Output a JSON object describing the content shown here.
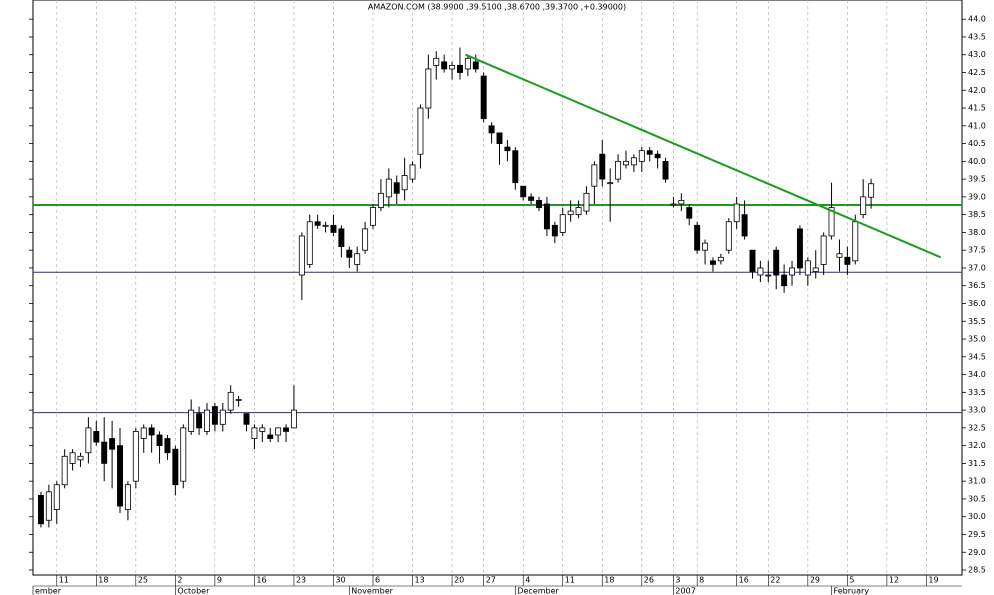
{
  "chart_data": {
    "type": "candlestick",
    "title": "AMAZON.COM (38.9900 ,39.5100 ,38.6700 ,39.3700 ,+0.39000)",
    "categories": [
      null,
      null,
      "11",
      null,
      null,
      null,
      null,
      "18",
      null,
      null,
      null,
      null,
      "25",
      null,
      null,
      null,
      null,
      "2",
      null,
      null,
      null,
      null,
      "9",
      null,
      null,
      null,
      null,
      "16",
      null,
      null,
      null,
      null,
      "23",
      null,
      null,
      null,
      null,
      "30",
      null,
      null,
      null,
      null,
      "6",
      null,
      null,
      null,
      null,
      "13",
      null,
      null,
      null,
      null,
      "20",
      null,
      null,
      null,
      "27",
      null,
      null,
      null,
      null,
      "4",
      null,
      null,
      null,
      null,
      "11",
      null,
      null,
      null,
      null,
      "18",
      null,
      null,
      null,
      null,
      "26",
      null,
      null,
      null,
      "3",
      null,
      null,
      "8",
      null,
      null,
      null,
      null,
      "16",
      null,
      null,
      null,
      "22",
      null,
      null,
      null,
      null,
      "29",
      null,
      null,
      null,
      null,
      "5",
      null,
      null,
      null,
      null,
      "12",
      null,
      null,
      null,
      null,
      "19",
      null,
      null,
      null,
      null
    ],
    "months": [
      "ember",
      null,
      null,
      null,
      null,
      null,
      null,
      null,
      null,
      null,
      null,
      null,
      null,
      null,
      null,
      null,
      null,
      "October",
      null,
      null,
      null,
      null,
      null,
      null,
      null,
      null,
      null,
      null,
      null,
      null,
      null,
      null,
      null,
      null,
      null,
      null,
      null,
      null,
      null,
      "November",
      null,
      null,
      null,
      null,
      null,
      null,
      null,
      null,
      null,
      null,
      null,
      null,
      null,
      null,
      null,
      null,
      null,
      null,
      null,
      null,
      "December",
      null,
      null,
      null,
      null,
      null,
      null,
      null,
      null,
      null,
      null,
      null,
      null,
      null,
      null,
      null,
      null,
      null,
      null,
      null,
      "2007",
      null,
      null,
      null,
      null,
      null,
      null,
      null,
      null,
      null,
      null,
      null,
      null,
      null,
      null,
      null,
      null,
      null,
      null,
      null,
      "February",
      null,
      null,
      null,
      null,
      null,
      null,
      null,
      null,
      null,
      null,
      null,
      null,
      null,
      null,
      null,
      null
    ],
    "open": [
      30.6,
      29.9,
      30.2,
      30.9,
      31.5,
      31.6,
      31.8,
      32.4,
      32.1,
      32.2,
      32.0,
      30.2,
      31.0,
      32.2,
      32.5,
      32.3,
      32.2,
      31.9,
      31.0,
      32.4,
      32.9,
      32.4,
      33.1,
      32.6,
      33.0,
      33.3,
      32.9,
      32.2,
      32.4,
      32.3,
      32.3,
      32.5,
      32.5,
      36.8,
      37.1,
      38.3,
      38.2,
      38.2,
      38.1,
      37.5,
      37.1,
      37.5,
      38.2,
      38.7,
      39.0,
      39.4,
      39.2,
      39.5,
      40.2,
      41.5,
      42.7,
      42.8,
      42.6,
      42.7,
      42.6,
      42.8,
      42.4,
      41.0,
      40.8,
      40.4,
      40.3,
      39.3,
      39.0,
      38.9,
      38.8,
      38.2,
      38.0,
      38.5,
      38.5,
      38.6,
      39.3,
      40.2,
      39.4,
      39.5,
      39.9,
      39.9,
      40.0,
      40.3,
      40.2,
      40.0,
      38.8,
      38.8,
      38.7,
      38.2,
      37.5,
      37.2,
      37.2,
      37.5,
      38.3,
      38.5,
      37.5,
      36.8,
      36.8,
      37.5,
      36.8,
      36.8,
      38.1,
      36.8,
      36.9,
      37.1,
      37.9,
      37.3,
      37.3,
      37.2,
      38.5,
      38.99,
      null,
      null,
      null,
      null,
      null,
      null,
      null,
      null,
      null,
      null,
      null
    ],
    "high": [
      30.7,
      30.9,
      31.0,
      31.9,
      31.9,
      31.8,
      32.8,
      32.7,
      32.8,
      32.7,
      32.5,
      31.0,
      32.5,
      32.6,
      32.6,
      32.4,
      32.3,
      32.0,
      32.6,
      33.3,
      33.1,
      33.2,
      33.2,
      33.2,
      33.7,
      33.4,
      32.9,
      32.6,
      32.6,
      32.5,
      32.5,
      32.6,
      33.7,
      38.0,
      38.5,
      38.5,
      38.3,
      38.5,
      38.2,
      37.6,
      37.6,
      38.3,
      38.8,
      39.5,
      39.8,
      39.6,
      40.1,
      40.0,
      41.6,
      43.0,
      43.1,
      43.0,
      42.8,
      43.2,
      43.0,
      43.0,
      42.5,
      41.1,
      40.8,
      40.6,
      40.4,
      39.3,
      39.1,
      39.0,
      39.0,
      38.3,
      38.7,
      38.9,
      38.9,
      39.3,
      40.0,
      40.6,
      39.8,
      40.2,
      40.3,
      40.2,
      40.4,
      40.4,
      40.3,
      40.1,
      39.0,
      39.1,
      38.8,
      38.3,
      37.8,
      37.3,
      37.4,
      38.4,
      39.0,
      38.9,
      37.5,
      37.2,
      37.2,
      37.6,
      37.1,
      37.2,
      38.2,
      37.3,
      37.5,
      38.0,
      39.4,
      37.8,
      37.6,
      38.5,
      39.5,
      39.51,
      null,
      null,
      null,
      null,
      null,
      null,
      null,
      null,
      null,
      null,
      null
    ],
    "low": [
      29.7,
      29.7,
      29.8,
      30.8,
      31.3,
      31.4,
      31.5,
      32.0,
      31.0,
      30.8,
      30.1,
      29.9,
      30.8,
      31.8,
      31.8,
      31.5,
      31.6,
      30.6,
      30.8,
      32.3,
      32.3,
      32.3,
      32.4,
      32.4,
      32.9,
      33.1,
      32.4,
      31.9,
      32.1,
      32.1,
      32.1,
      32.1,
      32.5,
      36.1,
      37.0,
      38.1,
      38.0,
      37.9,
      37.3,
      37.0,
      36.9,
      37.4,
      38.1,
      38.6,
      38.7,
      38.8,
      38.9,
      39.4,
      39.8,
      41.2,
      42.3,
      42.5,
      42.3,
      42.3,
      42.4,
      42.5,
      41.1,
      40.5,
      39.9,
      40.0,
      39.2,
      38.9,
      38.8,
      38.6,
      37.9,
      37.7,
      37.9,
      38.3,
      38.4,
      38.5,
      38.8,
      39.3,
      38.3,
      39.4,
      39.8,
      39.7,
      39.7,
      40.0,
      39.8,
      39.4,
      38.7,
      38.6,
      38.2,
      37.4,
      37.1,
      36.9,
      37.1,
      37.4,
      38.1,
      37.8,
      36.7,
      36.6,
      36.6,
      36.4,
      36.3,
      36.5,
      36.8,
      36.5,
      36.7,
      36.8,
      37.8,
      36.9,
      36.8,
      37.1,
      38.4,
      38.67,
      null,
      null,
      null,
      null,
      null,
      null,
      null,
      null,
      null,
      null,
      null
    ],
    "close": [
      29.8,
      30.7,
      30.9,
      31.7,
      31.8,
      31.7,
      32.5,
      32.1,
      31.5,
      31.9,
      30.3,
      30.9,
      32.4,
      32.5,
      32.3,
      32.0,
      31.8,
      30.9,
      32.5,
      33.0,
      32.5,
      33.0,
      32.6,
      33.0,
      33.5,
      33.3,
      32.6,
      32.5,
      32.5,
      32.2,
      32.5,
      32.4,
      33.0,
      37.9,
      38.3,
      38.2,
      38.2,
      38.0,
      37.6,
      37.3,
      37.4,
      38.1,
      38.7,
      39.1,
      39.5,
      39.1,
      39.6,
      39.9,
      41.5,
      42.6,
      42.9,
      42.6,
      42.7,
      42.5,
      42.9,
      42.6,
      41.2,
      40.8,
      40.5,
      40.3,
      39.4,
      39.0,
      38.9,
      38.7,
      38.1,
      37.9,
      38.5,
      38.6,
      38.7,
      39.1,
      39.9,
      39.5,
      39.4,
      40.0,
      40.0,
      40.1,
      40.3,
      40.2,
      40.1,
      39.5,
      38.8,
      38.9,
      38.4,
      37.5,
      37.7,
      37.1,
      37.3,
      38.3,
      38.8,
      37.9,
      36.9,
      37.0,
      36.8,
      36.8,
      36.5,
      37.0,
      37.0,
      37.2,
      37.0,
      37.9,
      38.7,
      37.4,
      37.1,
      38.3,
      39.0,
      39.37,
      null,
      null,
      null,
      null,
      null,
      null,
      null,
      null,
      null,
      null,
      null
    ],
    "up_color": "#ffffff",
    "down_color": "#000000",
    "ylim": [
      28.36,
      44.54
    ],
    "yticks": [
      28.5,
      {
        "value": 29,
        "label": "29.0"
      },
      29.5,
      {
        "value": 30,
        "label": "30.0"
      },
      30.5,
      {
        "value": 31,
        "label": "31.0"
      },
      31.5,
      {
        "value": 32,
        "label": "32.0"
      },
      32.5,
      {
        "value": 33,
        "label": "33.0"
      },
      33.5,
      {
        "value": 34,
        "label": "34.0"
      },
      34.5,
      {
        "value": 35,
        "label": "35.0"
      },
      35.5,
      {
        "value": 36,
        "label": "36.0"
      },
      36.5,
      {
        "value": 37,
        "label": "37.0"
      },
      37.5,
      {
        "value": 38,
        "label": "38.0"
      },
      38.5,
      {
        "value": 39,
        "label": "39.0"
      },
      39.5,
      {
        "value": 40,
        "label": "40.0"
      },
      40.5,
      {
        "value": 41,
        "label": "41.0"
      },
      41.5,
      {
        "value": 42,
        "label": "42.0"
      },
      42.5,
      {
        "value": 43,
        "label": "43.0"
      },
      43.5,
      {
        "value": 44,
        "label": "44.0"
      }
    ],
    "hlines": [
      {
        "value": 38.77,
        "color": "#1e9a1e"
      },
      {
        "value": 36.88,
        "color": "#2a2a8c"
      },
      {
        "value": 32.93,
        "color": "#2a2a8c"
      }
    ],
    "trendline": {
      "color": "#1e9a1e",
      "x": [
        53.7,
        113.8
      ],
      "values": [
        43.0,
        37.3
      ]
    },
    "grid": true
  }
}
